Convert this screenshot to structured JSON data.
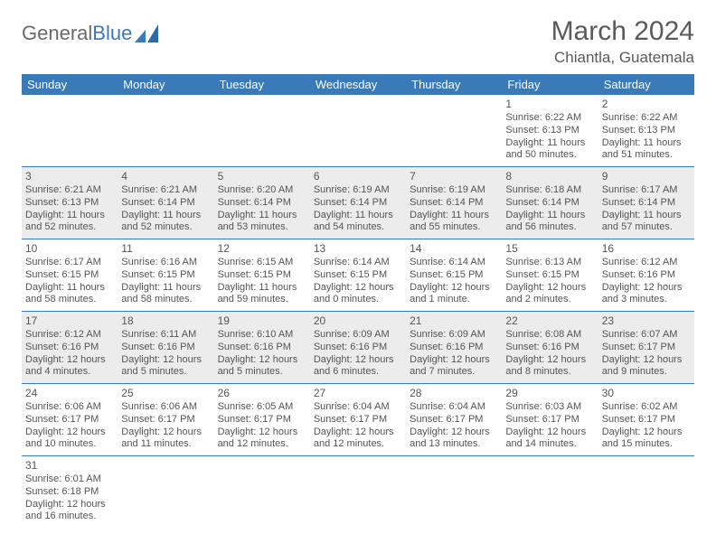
{
  "brand": {
    "part1": "General",
    "part2": "Blue"
  },
  "title": {
    "month": "March 2024",
    "location": "Chiantla, Guatemala"
  },
  "colors": {
    "header_bg": "#3a7ab8",
    "header_text": "#ffffff",
    "shade_bg": "#ececec",
    "plain_bg": "#ffffff",
    "text": "#555555",
    "rule": "#3a7ab8"
  },
  "calendar": {
    "day_headers": [
      "Sunday",
      "Monday",
      "Tuesday",
      "Wednesday",
      "Thursday",
      "Friday",
      "Saturday"
    ],
    "weeks": [
      [
        null,
        null,
        null,
        null,
        null,
        {
          "n": "1",
          "sr": "Sunrise: 6:22 AM",
          "ss": "Sunset: 6:13 PM",
          "d1": "Daylight: 11 hours",
          "d2": "and 50 minutes."
        },
        {
          "n": "2",
          "sr": "Sunrise: 6:22 AM",
          "ss": "Sunset: 6:13 PM",
          "d1": "Daylight: 11 hours",
          "d2": "and 51 minutes."
        }
      ],
      [
        {
          "n": "3",
          "sr": "Sunrise: 6:21 AM",
          "ss": "Sunset: 6:13 PM",
          "d1": "Daylight: 11 hours",
          "d2": "and 52 minutes."
        },
        {
          "n": "4",
          "sr": "Sunrise: 6:21 AM",
          "ss": "Sunset: 6:14 PM",
          "d1": "Daylight: 11 hours",
          "d2": "and 52 minutes."
        },
        {
          "n": "5",
          "sr": "Sunrise: 6:20 AM",
          "ss": "Sunset: 6:14 PM",
          "d1": "Daylight: 11 hours",
          "d2": "and 53 minutes."
        },
        {
          "n": "6",
          "sr": "Sunrise: 6:19 AM",
          "ss": "Sunset: 6:14 PM",
          "d1": "Daylight: 11 hours",
          "d2": "and 54 minutes."
        },
        {
          "n": "7",
          "sr": "Sunrise: 6:19 AM",
          "ss": "Sunset: 6:14 PM",
          "d1": "Daylight: 11 hours",
          "d2": "and 55 minutes."
        },
        {
          "n": "8",
          "sr": "Sunrise: 6:18 AM",
          "ss": "Sunset: 6:14 PM",
          "d1": "Daylight: 11 hours",
          "d2": "and 56 minutes."
        },
        {
          "n": "9",
          "sr": "Sunrise: 6:17 AM",
          "ss": "Sunset: 6:14 PM",
          "d1": "Daylight: 11 hours",
          "d2": "and 57 minutes."
        }
      ],
      [
        {
          "n": "10",
          "sr": "Sunrise: 6:17 AM",
          "ss": "Sunset: 6:15 PM",
          "d1": "Daylight: 11 hours",
          "d2": "and 58 minutes."
        },
        {
          "n": "11",
          "sr": "Sunrise: 6:16 AM",
          "ss": "Sunset: 6:15 PM",
          "d1": "Daylight: 11 hours",
          "d2": "and 58 minutes."
        },
        {
          "n": "12",
          "sr": "Sunrise: 6:15 AM",
          "ss": "Sunset: 6:15 PM",
          "d1": "Daylight: 11 hours",
          "d2": "and 59 minutes."
        },
        {
          "n": "13",
          "sr": "Sunrise: 6:14 AM",
          "ss": "Sunset: 6:15 PM",
          "d1": "Daylight: 12 hours",
          "d2": "and 0 minutes."
        },
        {
          "n": "14",
          "sr": "Sunrise: 6:14 AM",
          "ss": "Sunset: 6:15 PM",
          "d1": "Daylight: 12 hours",
          "d2": "and 1 minute."
        },
        {
          "n": "15",
          "sr": "Sunrise: 6:13 AM",
          "ss": "Sunset: 6:15 PM",
          "d1": "Daylight: 12 hours",
          "d2": "and 2 minutes."
        },
        {
          "n": "16",
          "sr": "Sunrise: 6:12 AM",
          "ss": "Sunset: 6:16 PM",
          "d1": "Daylight: 12 hours",
          "d2": "and 3 minutes."
        }
      ],
      [
        {
          "n": "17",
          "sr": "Sunrise: 6:12 AM",
          "ss": "Sunset: 6:16 PM",
          "d1": "Daylight: 12 hours",
          "d2": "and 4 minutes."
        },
        {
          "n": "18",
          "sr": "Sunrise: 6:11 AM",
          "ss": "Sunset: 6:16 PM",
          "d1": "Daylight: 12 hours",
          "d2": "and 5 minutes."
        },
        {
          "n": "19",
          "sr": "Sunrise: 6:10 AM",
          "ss": "Sunset: 6:16 PM",
          "d1": "Daylight: 12 hours",
          "d2": "and 5 minutes."
        },
        {
          "n": "20",
          "sr": "Sunrise: 6:09 AM",
          "ss": "Sunset: 6:16 PM",
          "d1": "Daylight: 12 hours",
          "d2": "and 6 minutes."
        },
        {
          "n": "21",
          "sr": "Sunrise: 6:09 AM",
          "ss": "Sunset: 6:16 PM",
          "d1": "Daylight: 12 hours",
          "d2": "and 7 minutes."
        },
        {
          "n": "22",
          "sr": "Sunrise: 6:08 AM",
          "ss": "Sunset: 6:16 PM",
          "d1": "Daylight: 12 hours",
          "d2": "and 8 minutes."
        },
        {
          "n": "23",
          "sr": "Sunrise: 6:07 AM",
          "ss": "Sunset: 6:17 PM",
          "d1": "Daylight: 12 hours",
          "d2": "and 9 minutes."
        }
      ],
      [
        {
          "n": "24",
          "sr": "Sunrise: 6:06 AM",
          "ss": "Sunset: 6:17 PM",
          "d1": "Daylight: 12 hours",
          "d2": "and 10 minutes."
        },
        {
          "n": "25",
          "sr": "Sunrise: 6:06 AM",
          "ss": "Sunset: 6:17 PM",
          "d1": "Daylight: 12 hours",
          "d2": "and 11 minutes."
        },
        {
          "n": "26",
          "sr": "Sunrise: 6:05 AM",
          "ss": "Sunset: 6:17 PM",
          "d1": "Daylight: 12 hours",
          "d2": "and 12 minutes."
        },
        {
          "n": "27",
          "sr": "Sunrise: 6:04 AM",
          "ss": "Sunset: 6:17 PM",
          "d1": "Daylight: 12 hours",
          "d2": "and 12 minutes."
        },
        {
          "n": "28",
          "sr": "Sunrise: 6:04 AM",
          "ss": "Sunset: 6:17 PM",
          "d1": "Daylight: 12 hours",
          "d2": "and 13 minutes."
        },
        {
          "n": "29",
          "sr": "Sunrise: 6:03 AM",
          "ss": "Sunset: 6:17 PM",
          "d1": "Daylight: 12 hours",
          "d2": "and 14 minutes."
        },
        {
          "n": "30",
          "sr": "Sunrise: 6:02 AM",
          "ss": "Sunset: 6:17 PM",
          "d1": "Daylight: 12 hours",
          "d2": "and 15 minutes."
        }
      ],
      [
        {
          "n": "31",
          "sr": "Sunrise: 6:01 AM",
          "ss": "Sunset: 6:18 PM",
          "d1": "Daylight: 12 hours",
          "d2": "and 16 minutes."
        },
        null,
        null,
        null,
        null,
        null,
        null
      ]
    ],
    "shade_rows": [
      false,
      true,
      false,
      true,
      false,
      false
    ]
  }
}
